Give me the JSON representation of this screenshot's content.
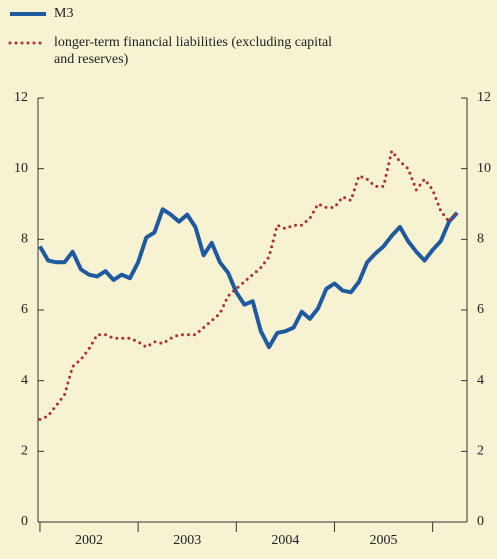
{
  "chart_data": {
    "type": "line",
    "x": [
      2002.0,
      2002.083,
      2002.167,
      2002.25,
      2002.333,
      2002.417,
      2002.5,
      2002.583,
      2002.667,
      2002.75,
      2002.833,
      2002.917,
      2003.0,
      2003.083,
      2003.167,
      2003.25,
      2003.333,
      2003.417,
      2003.5,
      2003.583,
      2003.667,
      2003.75,
      2003.833,
      2003.917,
      2004.0,
      2004.083,
      2004.167,
      2004.25,
      2004.333,
      2004.417,
      2004.5,
      2004.583,
      2004.667,
      2004.75,
      2004.833,
      2004.917,
      2005.0,
      2005.083,
      2005.167,
      2005.25,
      2005.333,
      2005.417,
      2005.5,
      2005.583,
      2005.667,
      2005.75,
      2005.833,
      2005.917,
      2006.0,
      2006.083,
      2006.167,
      2006.25
    ],
    "series": [
      {
        "name": "M3",
        "color": "#1f5aa0",
        "style": "solid",
        "values": [
          7.8,
          7.4,
          7.35,
          7.35,
          7.65,
          7.15,
          7.0,
          6.95,
          7.1,
          6.85,
          7.0,
          6.9,
          7.35,
          8.05,
          8.2,
          8.85,
          8.7,
          8.5,
          8.7,
          8.35,
          7.55,
          7.9,
          7.35,
          7.05,
          6.5,
          6.15,
          6.25,
          5.4,
          4.95,
          5.35,
          5.4,
          5.5,
          5.95,
          5.75,
          6.05,
          6.6,
          6.75,
          6.55,
          6.5,
          6.8,
          7.35,
          7.6,
          7.8,
          8.1,
          8.35,
          7.95,
          7.65,
          7.4,
          7.7,
          7.95,
          8.5,
          8.75
        ]
      },
      {
        "name": "longer-term financial liabilities (excluding capital and reserves)",
        "color": "#b03030",
        "style": "dotted",
        "values": [
          2.9,
          3.0,
          3.3,
          3.6,
          4.4,
          4.6,
          4.9,
          5.3,
          5.3,
          5.2,
          5.2,
          5.2,
          5.1,
          4.95,
          5.1,
          5.05,
          5.2,
          5.3,
          5.3,
          5.3,
          5.5,
          5.7,
          5.9,
          6.4,
          6.6,
          6.8,
          7.0,
          7.2,
          7.5,
          8.4,
          8.3,
          8.4,
          8.4,
          8.6,
          9.0,
          8.9,
          8.9,
          9.2,
          9.1,
          9.8,
          9.7,
          9.5,
          9.5,
          10.5,
          10.2,
          10.0,
          9.4,
          9.7,
          9.4,
          8.8,
          8.5,
          8.8
        ]
      }
    ],
    "xlim": [
      2001.98,
      2006.35
    ],
    "xticks": [
      {
        "value": 2002.5,
        "label": "2002"
      },
      {
        "value": 2003.5,
        "label": "2003"
      },
      {
        "value": 2004.5,
        "label": "2004"
      },
      {
        "value": 2005.5,
        "label": "2005"
      }
    ],
    "xtick_marks": [
      2002,
      2003,
      2004,
      2005,
      2006
    ],
    "ylim": [
      0,
      12
    ],
    "yticks": [
      0,
      2,
      4,
      6,
      8,
      10,
      12
    ],
    "y2lim": [
      0,
      12
    ],
    "y2ticks": [
      0,
      2,
      4,
      6,
      8,
      10,
      12
    ],
    "grid": false
  }
}
